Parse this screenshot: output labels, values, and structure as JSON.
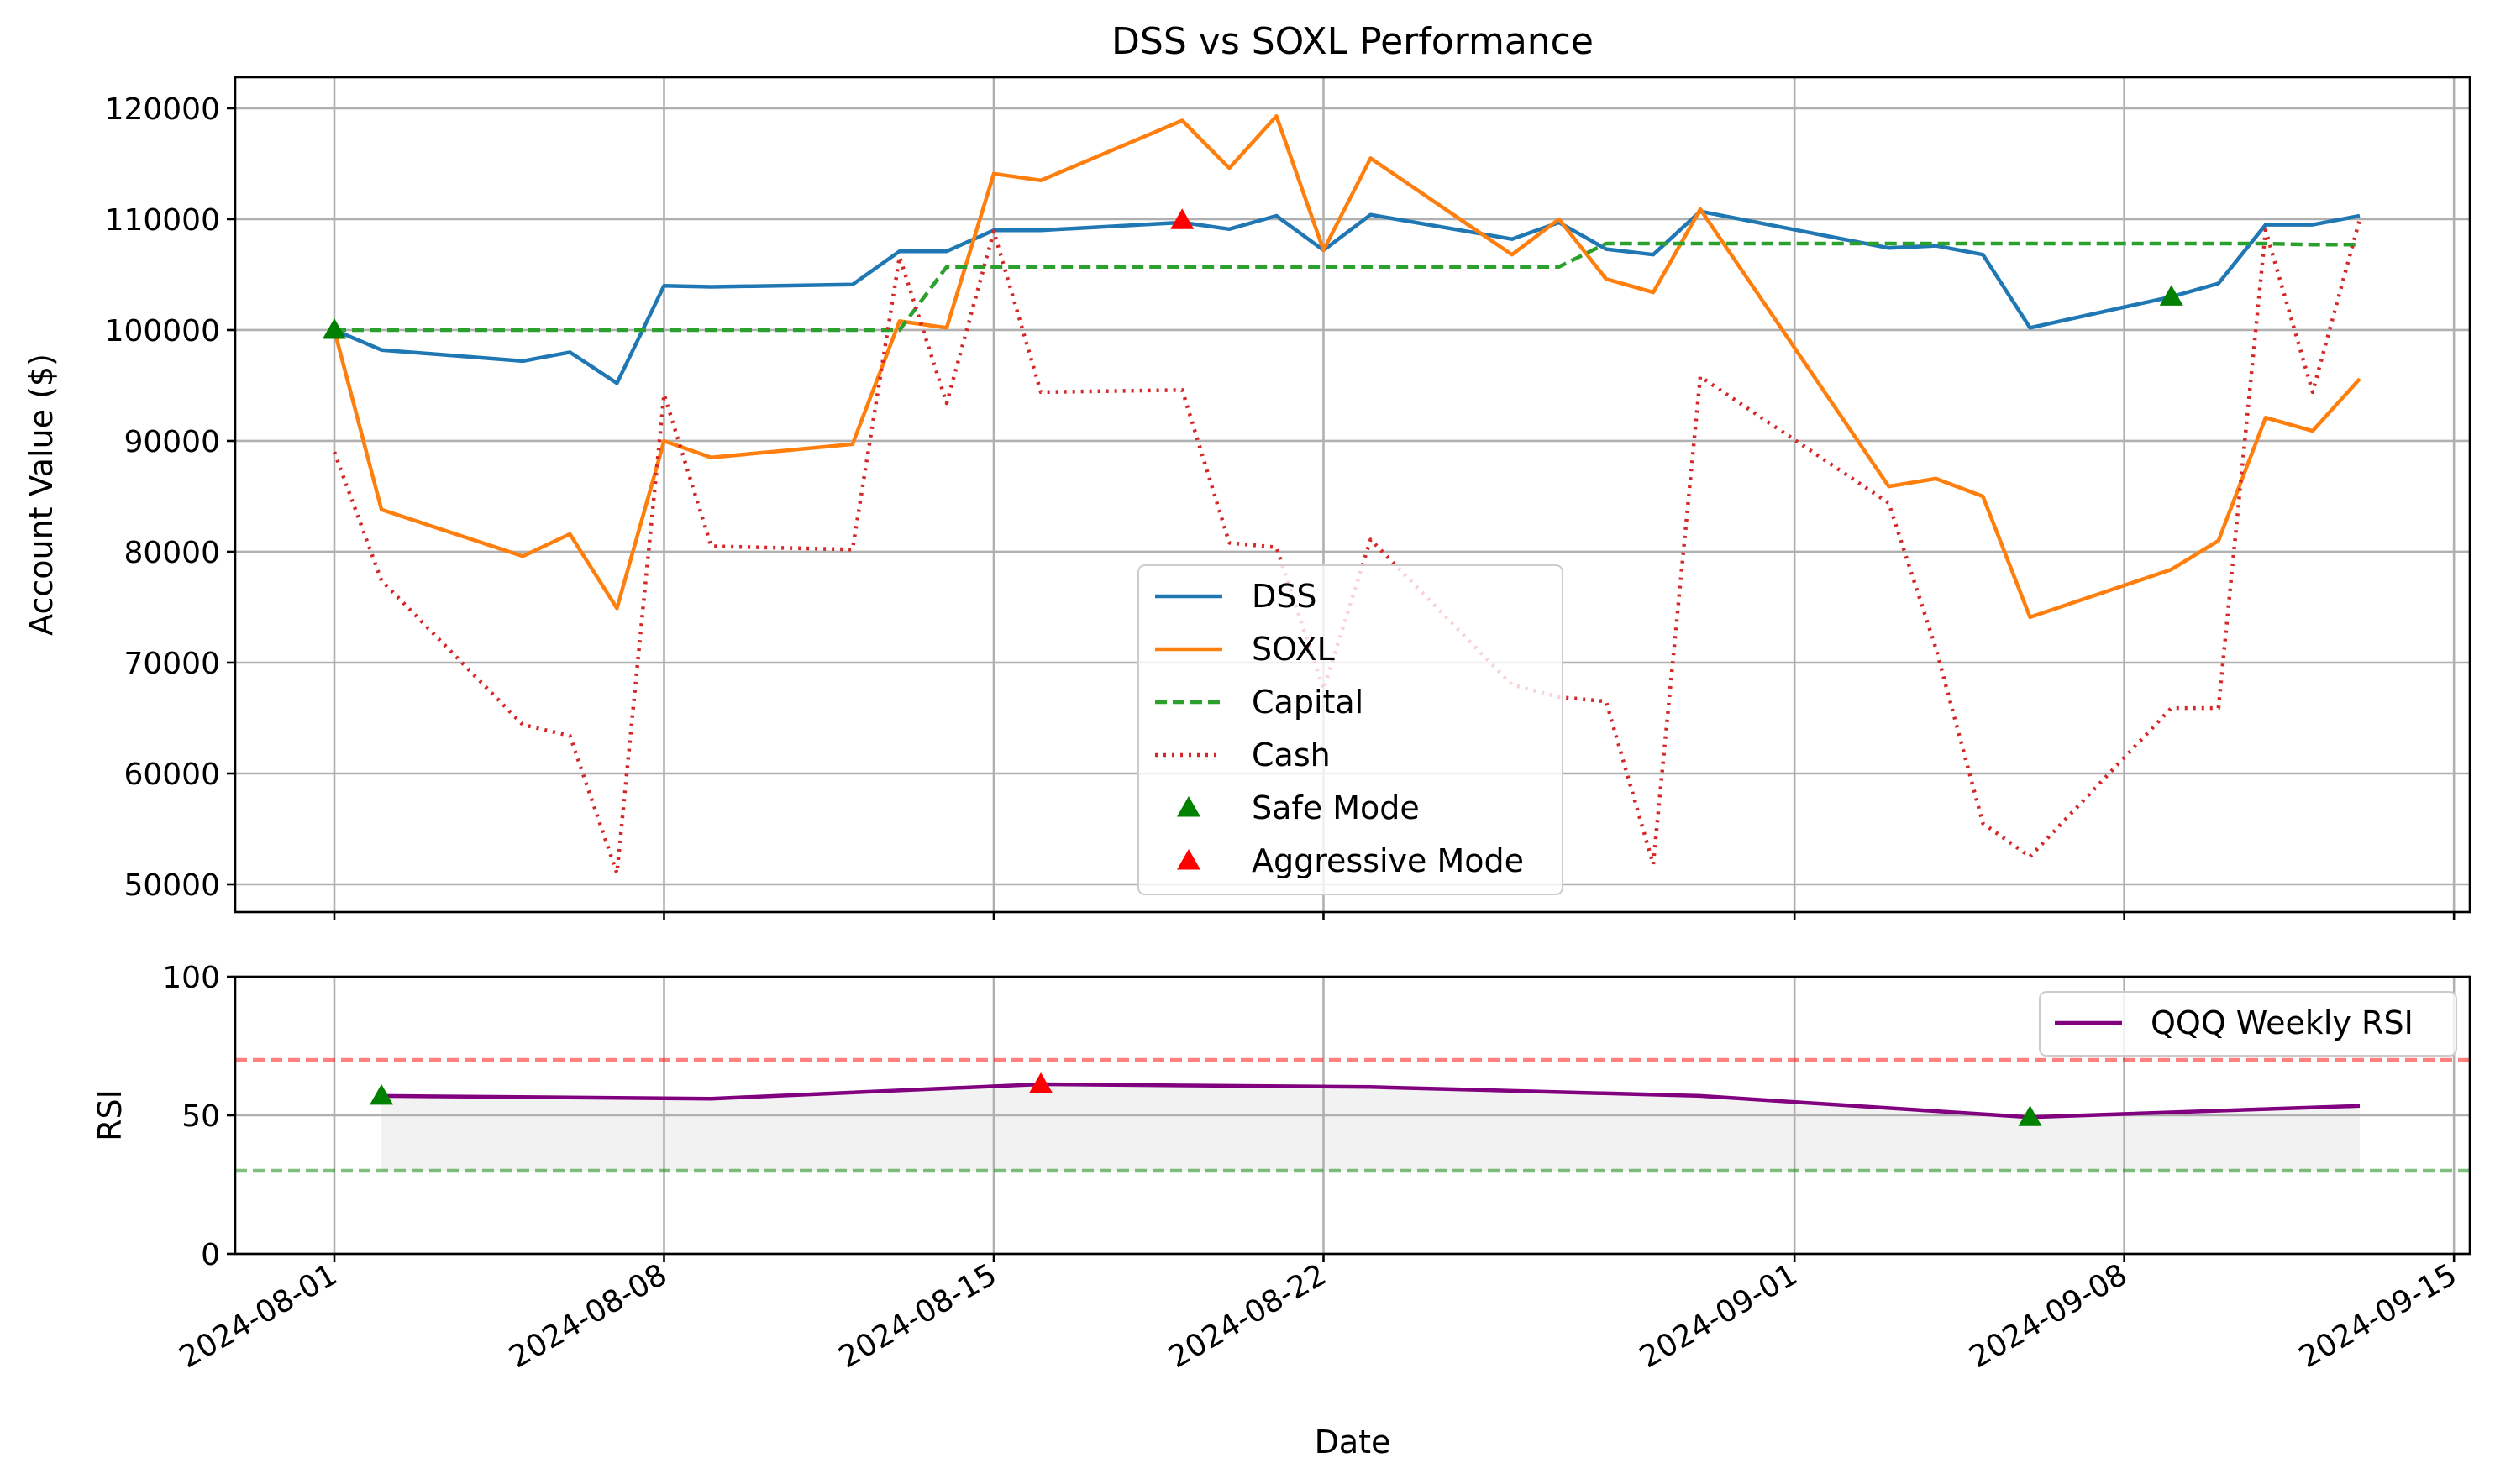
{
  "figure": {
    "title": "DSS vs SOXL Performance"
  },
  "chart_data": [
    {
      "type": "line",
      "title": "DSS vs SOXL Performance",
      "xlabel": "",
      "ylabel": "Account Value ($)",
      "ylim": [
        47500,
        122800
      ],
      "xlim": [
        "2024-07-29",
        "2024-09-15"
      ],
      "grid": true,
      "legend_position": "lower center",
      "yticks": [
        50000,
        60000,
        70000,
        80000,
        90000,
        100000,
        110000,
        120000
      ],
      "xticks": [
        "2024-08-01",
        "2024-08-08",
        "2024-08-15",
        "2024-08-22",
        "2024-09-01",
        "2024-09-08",
        "2024-09-15"
      ],
      "series": [
        {
          "name": "DSS",
          "color": "#1f77b4",
          "style": "solid",
          "x": [
            "2024-08-01",
            "2024-08-02",
            "2024-08-05",
            "2024-08-06",
            "2024-08-07",
            "2024-08-08",
            "2024-08-09",
            "2024-08-12",
            "2024-08-13",
            "2024-08-14",
            "2024-08-15",
            "2024-08-16",
            "2024-08-19",
            "2024-08-20",
            "2024-08-21",
            "2024-08-22",
            "2024-08-23",
            "2024-08-26",
            "2024-08-27",
            "2024-08-28",
            "2024-08-29",
            "2024-08-30",
            "2024-09-03",
            "2024-09-04",
            "2024-09-05",
            "2024-09-06",
            "2024-09-09",
            "2024-09-10",
            "2024-09-11",
            "2024-09-12",
            "2024-09-13"
          ],
          "values": [
            100000,
            98200,
            97200,
            98000,
            95200,
            104000,
            103900,
            104100,
            107100,
            107100,
            109000,
            109000,
            109700,
            109100,
            110300,
            107200,
            110400,
            108200,
            109700,
            107300,
            106800,
            110700,
            107400,
            107600,
            106800,
            100200,
            103000,
            104200,
            109500,
            109500,
            110300
          ]
        },
        {
          "name": "SOXL",
          "color": "#ff7f0e",
          "style": "solid",
          "x": [
            "2024-08-01",
            "2024-08-02",
            "2024-08-05",
            "2024-08-06",
            "2024-08-07",
            "2024-08-08",
            "2024-08-09",
            "2024-08-12",
            "2024-08-13",
            "2024-08-14",
            "2024-08-15",
            "2024-08-16",
            "2024-08-19",
            "2024-08-20",
            "2024-08-21",
            "2024-08-22",
            "2024-08-23",
            "2024-08-26",
            "2024-08-27",
            "2024-08-28",
            "2024-08-29",
            "2024-08-30",
            "2024-09-03",
            "2024-09-04",
            "2024-09-05",
            "2024-09-06",
            "2024-09-09",
            "2024-09-10",
            "2024-09-11",
            "2024-09-12",
            "2024-09-13"
          ],
          "values": [
            100000,
            83800,
            79600,
            81600,
            74900,
            90000,
            88500,
            89700,
            100800,
            100200,
            114100,
            113500,
            118900,
            114600,
            119300,
            107200,
            115500,
            106800,
            110000,
            104600,
            103400,
            110900,
            85900,
            86600,
            85000,
            74100,
            78400,
            81000,
            92100,
            90900,
            95600
          ]
        },
        {
          "name": "Capital",
          "color": "#2ca02c",
          "style": "dashed",
          "x": [
            "2024-08-01",
            "2024-08-13",
            "2024-08-14",
            "2024-08-15",
            "2024-08-16",
            "2024-08-19",
            "2024-08-22",
            "2024-08-26",
            "2024-08-27",
            "2024-08-28",
            "2024-08-30",
            "2024-09-03",
            "2024-09-09",
            "2024-09-10",
            "2024-09-11",
            "2024-09-12",
            "2024-09-13"
          ],
          "values": [
            100000,
            100000,
            105700,
            105700,
            105700,
            105700,
            105700,
            105700,
            105700,
            107800,
            107800,
            107800,
            107800,
            107800,
            107800,
            107700,
            107700
          ]
        },
        {
          "name": "Cash",
          "color": "#d62728",
          "style": "dotted",
          "x": [
            "2024-08-01",
            "2024-08-02",
            "2024-08-05",
            "2024-08-06",
            "2024-08-07",
            "2024-08-08",
            "2024-08-09",
            "2024-08-12",
            "2024-08-13",
            "2024-08-14",
            "2024-08-15",
            "2024-08-16",
            "2024-08-19",
            "2024-08-20",
            "2024-08-21",
            "2024-08-22",
            "2024-08-23",
            "2024-08-26",
            "2024-08-27",
            "2024-08-28",
            "2024-08-29",
            "2024-08-30",
            "2024-09-03",
            "2024-09-04",
            "2024-09-05",
            "2024-09-06",
            "2024-09-09",
            "2024-09-10",
            "2024-09-11",
            "2024-09-12",
            "2024-09-13"
          ],
          "values": [
            89000,
            77400,
            64400,
            63400,
            51000,
            94200,
            80500,
            80200,
            106600,
            93400,
            108900,
            94400,
            94600,
            80800,
            80400,
            67600,
            81100,
            68000,
            66900,
            66500,
            51800,
            95800,
            84400,
            71300,
            55500,
            52500,
            65900,
            65900,
            109000,
            94400,
            110000
          ]
        }
      ],
      "markers": [
        {
          "name": "Safe Mode",
          "color": "#008000",
          "shape": "triangle-up",
          "points": [
            {
              "x": "2024-08-01",
              "y": 100000
            },
            {
              "x": "2024-09-09",
              "y": 103000
            }
          ]
        },
        {
          "name": "Aggressive Mode",
          "color": "#ff0000",
          "shape": "triangle-up",
          "points": [
            {
              "x": "2024-08-19",
              "y": 109900
            }
          ]
        }
      ]
    },
    {
      "type": "line",
      "title": "",
      "xlabel": "Date",
      "ylabel": "RSI",
      "ylim": [
        0,
        100
      ],
      "xlim": [
        "2024-07-29",
        "2024-09-15"
      ],
      "grid": true,
      "legend_position": "upper right",
      "yticks": [
        0,
        50,
        100
      ],
      "xticks": [
        "2024-08-01",
        "2024-08-08",
        "2024-08-15",
        "2024-08-22",
        "2024-09-01",
        "2024-09-08",
        "2024-09-15"
      ],
      "shaded_band": {
        "between": "series",
        "baseline": 30,
        "color": "#808080"
      },
      "reference_lines": [
        {
          "y": 70,
          "color": "#ff0000",
          "style": "dashed"
        },
        {
          "y": 30,
          "color": "#008000",
          "style": "dashed"
        }
      ],
      "series": [
        {
          "name": "QQQ Weekly RSI",
          "color": "#800080",
          "style": "solid",
          "x": [
            "2024-08-02",
            "2024-08-09",
            "2024-08-16",
            "2024-08-23",
            "2024-08-30",
            "2024-09-06",
            "2024-09-13"
          ],
          "values": [
            57,
            56,
            61.2,
            60.2,
            57,
            49.3,
            53.4
          ]
        }
      ],
      "markers": [
        {
          "name": "Safe Mode",
          "color": "#008000",
          "shape": "triangle-up",
          "points": [
            {
              "x": "2024-08-02",
              "y": 57
            },
            {
              "x": "2024-09-06",
              "y": 49.3
            }
          ]
        },
        {
          "name": "Aggressive Mode",
          "color": "#ff0000",
          "shape": "triangle-up",
          "points": [
            {
              "x": "2024-08-16",
              "y": 61.2
            }
          ]
        }
      ]
    }
  ]
}
